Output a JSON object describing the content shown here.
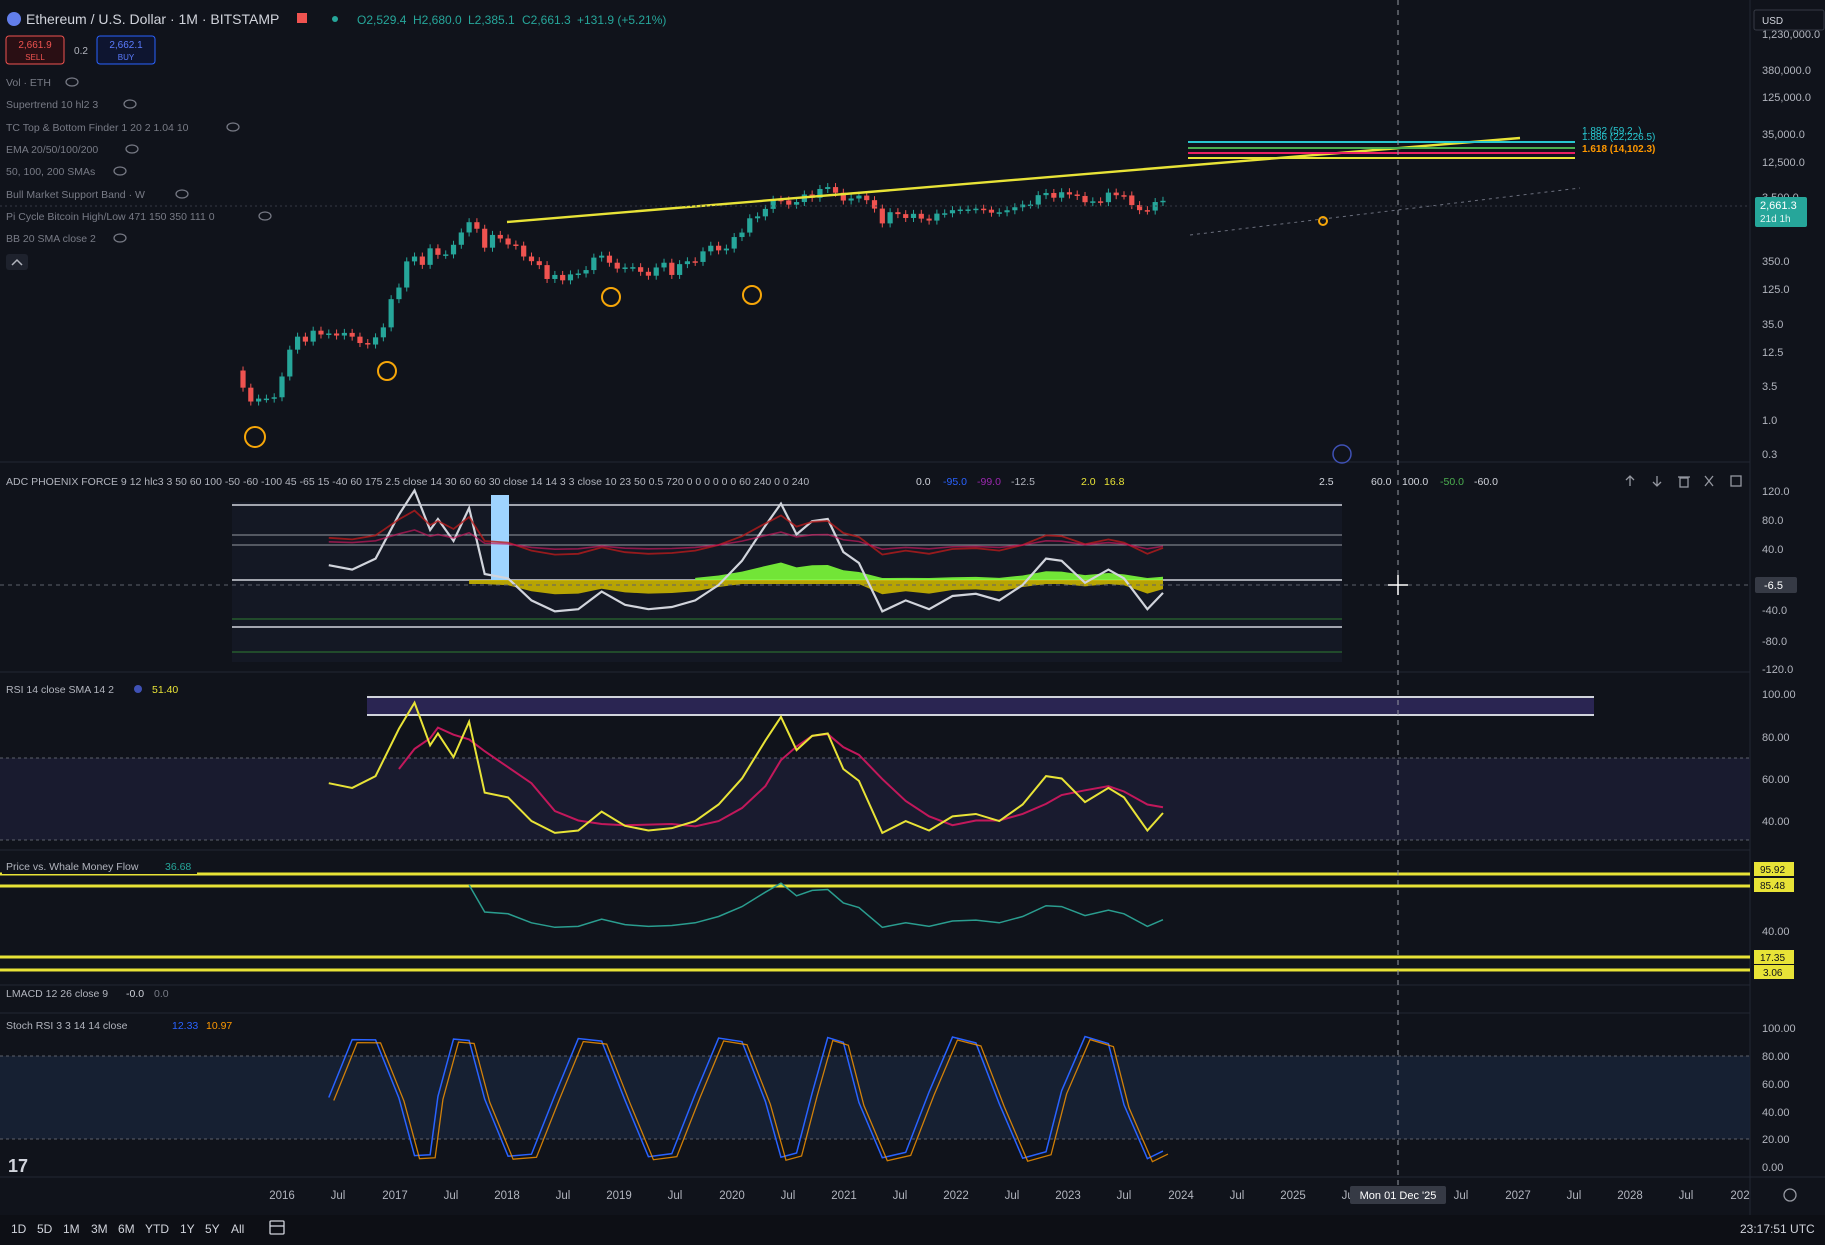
{
  "header": {
    "symbol": "Ethereum / U.S. Dollar · 1M · BITSTAMP",
    "ohlc": {
      "open": "O2,529.4",
      "high": "H2,680.0",
      "low": "L2,385.1",
      "close": "C2,661.3",
      "change": "+131.9 (+5.21%)"
    },
    "sell_price": "2,661.9",
    "sell_label": "SELL",
    "spread": "0.2",
    "buy_price": "2,662.1",
    "buy_label": "BUY",
    "currency": "USD"
  },
  "indicators": [
    "Vol · ETH",
    "Supertrend 10 hl2 3",
    "TC Top & Bottom Finder 1 20 2 1.04 10",
    "EMA 20/50/100/200",
    "50, 100, 200 SMAs",
    "Bull Market Support Band · W",
    "Pi Cycle Bitcoin High/Low 471 150 350 111 0",
    "BB 20 SMA close 2"
  ],
  "price_axis": {
    "ticks": [
      "1,230,000.0",
      "380,000.0",
      "125,000.0",
      "35,000.0",
      "12,500.0",
      "3,500.0",
      "350.0",
      "125.0",
      "35.0",
      "12.5",
      "3.5",
      "1.0",
      "0.3"
    ],
    "current_price": "2,661.3",
    "countdown": "21d 1h"
  },
  "fib_labels": [
    "1.882 (59,2..)",
    "1.886 (22,226.5)",
    "1.618 (14,102.3)"
  ],
  "phoenix": {
    "title": "ADC PHOENIX FORCE 9 12 hlc3 3 50 60 100 -50 -60 -100 45 -65 15 -40 60 175 2.5 close 14 30 60 60 30 close 14 14 3 3 close 10 23 50 0.5 720 0 0 0 0 0 0 60 240 0 0 240",
    "values": [
      "0.0",
      "-95.0",
      "-99.0",
      "-12.5",
      "2.0",
      "16.8",
      "2.5",
      "60.0",
      "100.0",
      "-50.0",
      "-60.0"
    ],
    "axis": [
      "120.0",
      "80.0",
      "40.0",
      "-6.5",
      "-40.0",
      "-80.0",
      "-120.0"
    ]
  },
  "rsi": {
    "title": "RSI 14 close SMA 14 2",
    "value": "51.40",
    "axis": [
      "100.00",
      "80.00",
      "60.00",
      "40.00"
    ]
  },
  "whale": {
    "title": "Price vs. Whale Money Flow",
    "value": "36.68",
    "axis": [
      "95.92",
      "85.48",
      "40.00",
      "17.35",
      "3.06"
    ]
  },
  "lmacd": {
    "title": "LMACD 12 26 close 9",
    "value1": "-0.0",
    "value2": "0.0"
  },
  "stoch": {
    "title": "Stoch RSI 3 3 14 14 close",
    "k": "12.33",
    "d": "10.97",
    "axis": [
      "100.00",
      "80.00",
      "60.00",
      "40.00",
      "20.00",
      "0.00"
    ]
  },
  "time_axis": {
    "labels": [
      "2016",
      "Jul",
      "2017",
      "Jul",
      "2018",
      "Jul",
      "2019",
      "Jul",
      "2020",
      "Jul",
      "2021",
      "Jul",
      "2022",
      "Jul",
      "2023",
      "Jul",
      "2024",
      "Jul",
      "2025",
      "Jul",
      "Jul",
      "2027",
      "Jul",
      "2028",
      "Jul",
      "202"
    ],
    "cursor_label": "Mon 01 Dec '25"
  },
  "bottom_bar": {
    "ranges": [
      "1D",
      "5D",
      "1M",
      "3M",
      "6M",
      "YTD",
      "1Y",
      "5Y",
      "All"
    ],
    "clock": "23:17:51 UTC"
  },
  "colors": {
    "background": "#10131b",
    "up": "#26a69a",
    "down": "#ef5350",
    "trendline": "#e8e337",
    "rsi_line": "#e8e337",
    "rsi_ma": "#c2185b",
    "phoenix_green": "#7cfc3a",
    "phoenix_gold": "#c9b400",
    "stoch_k": "#2962ff",
    "stoch_d": "#ff9800",
    "whale": "#2a9d8f",
    "current_price_tag": "#26a69a",
    "fib_cyan": "#28c7d0",
    "fib_green": "#4caf50",
    "fib_red": "#e91e63"
  },
  "chart_data": {
    "type": "candlestick",
    "title": "Ethereum / U.S. Dollar · 1M · BITSTAMP",
    "scale": "log",
    "y_range_display": [
      0.3,
      1230000
    ],
    "current_price": 2661.3,
    "months": [
      {
        "t": "2015-08",
        "o": 2.8,
        "c": 1.4
      },
      {
        "t": "2015-09",
        "o": 1.4,
        "c": 0.8
      },
      {
        "t": "2015-10",
        "o": 0.8,
        "c": 0.9
      },
      {
        "t": "2015-11",
        "o": 0.9,
        "c": 0.9
      },
      {
        "t": "2015-12",
        "o": 0.9,
        "c": 0.95
      },
      {
        "t": "2016-01",
        "o": 0.95,
        "c": 2.2
      },
      {
        "t": "2016-02",
        "o": 2.2,
        "c": 6.5
      },
      {
        "t": "2016-03",
        "o": 6.5,
        "c": 11.0
      },
      {
        "t": "2016-04",
        "o": 11.0,
        "c": 9.0
      },
      {
        "t": "2016-05",
        "o": 9.0,
        "c": 14.0
      },
      {
        "t": "2016-06",
        "o": 14.0,
        "c": 12.0
      },
      {
        "t": "2016-07",
        "o": 12.0,
        "c": 12.5
      },
      {
        "t": "2016-08",
        "o": 12.5,
        "c": 11.5
      },
      {
        "t": "2016-09",
        "o": 11.5,
        "c": 12.8
      },
      {
        "t": "2016-10",
        "o": 12.8,
        "c": 11.0
      },
      {
        "t": "2016-11",
        "o": 11.0,
        "c": 8.5
      },
      {
        "t": "2016-12",
        "o": 8.5,
        "c": 8.0
      },
      {
        "t": "2017-01",
        "o": 8.0,
        "c": 10.7
      },
      {
        "t": "2017-02",
        "o": 10.7,
        "c": 16.0
      },
      {
        "t": "2017-03",
        "o": 16.0,
        "c": 50.0
      },
      {
        "t": "2017-04",
        "o": 50.0,
        "c": 80.0
      },
      {
        "t": "2017-05",
        "o": 80.0,
        "c": 230.0
      },
      {
        "t": "2017-06",
        "o": 230.0,
        "c": 280.0
      },
      {
        "t": "2017-07",
        "o": 280.0,
        "c": 200.0
      },
      {
        "t": "2017-08",
        "o": 200.0,
        "c": 390.0
      },
      {
        "t": "2017-09",
        "o": 390.0,
        "c": 300.0
      },
      {
        "t": "2017-10",
        "o": 300.0,
        "c": 305.0
      },
      {
        "t": "2017-11",
        "o": 305.0,
        "c": 450.0
      },
      {
        "t": "2017-12",
        "o": 450.0,
        "c": 740.0
      },
      {
        "t": "2018-01",
        "o": 740.0,
        "c": 1120.0
      },
      {
        "t": "2018-02",
        "o": 1120.0,
        "c": 860.0
      },
      {
        "t": "2018-03",
        "o": 860.0,
        "c": 400.0
      },
      {
        "t": "2018-04",
        "o": 400.0,
        "c": 670.0
      },
      {
        "t": "2018-05",
        "o": 670.0,
        "c": 580.0
      },
      {
        "t": "2018-06",
        "o": 580.0,
        "c": 455.0
      },
      {
        "t": "2018-07",
        "o": 455.0,
        "c": 435.0
      },
      {
        "t": "2018-08",
        "o": 435.0,
        "c": 280.0
      },
      {
        "t": "2018-09",
        "o": 280.0,
        "c": 232.0
      },
      {
        "t": "2018-10",
        "o": 232.0,
        "c": 198.0
      },
      {
        "t": "2018-11",
        "o": 198.0,
        "c": 113.0
      },
      {
        "t": "2018-12",
        "o": 113.0,
        "c": 133.0
      },
      {
        "t": "2019-01",
        "o": 133.0,
        "c": 107.0
      },
      {
        "t": "2019-02",
        "o": 107.0,
        "c": 136.0
      },
      {
        "t": "2019-03",
        "o": 136.0,
        "c": 141.0
      },
      {
        "t": "2019-04",
        "o": 141.0,
        "c": 162.0
      },
      {
        "t": "2019-05",
        "o": 162.0,
        "c": 268.0
      },
      {
        "t": "2019-06",
        "o": 268.0,
        "c": 290.0
      },
      {
        "t": "2019-07",
        "o": 290.0,
        "c": 218.0
      },
      {
        "t": "2019-08",
        "o": 218.0,
        "c": 172.0
      },
      {
        "t": "2019-09",
        "o": 172.0,
        "c": 180.0
      },
      {
        "t": "2019-10",
        "o": 180.0,
        "c": 182.0
      },
      {
        "t": "2019-11",
        "o": 182.0,
        "c": 151.0
      },
      {
        "t": "2019-12",
        "o": 151.0,
        "c": 129.0
      },
      {
        "t": "2020-01",
        "o": 129.0,
        "c": 180.0
      },
      {
        "t": "2020-02",
        "o": 180.0,
        "c": 218.0
      },
      {
        "t": "2020-03",
        "o": 218.0,
        "c": 133.0
      },
      {
        "t": "2020-04",
        "o": 133.0,
        "c": 206.0
      },
      {
        "t": "2020-05",
        "o": 206.0,
        "c": 231.0
      },
      {
        "t": "2020-06",
        "o": 231.0,
        "c": 225.0
      },
      {
        "t": "2020-07",
        "o": 225.0,
        "c": 345.0
      },
      {
        "t": "2020-08",
        "o": 345.0,
        "c": 433.0
      },
      {
        "t": "2020-09",
        "o": 433.0,
        "c": 359.0
      },
      {
        "t": "2020-10",
        "o": 359.0,
        "c": 386.0
      },
      {
        "t": "2020-11",
        "o": 386.0,
        "c": 615.0
      },
      {
        "t": "2020-12",
        "o": 615.0,
        "c": 737.0
      },
      {
        "t": "2021-01",
        "o": 737.0,
        "c": 1312.0
      },
      {
        "t": "2021-02",
        "o": 1312.0,
        "c": 1418.0
      },
      {
        "t": "2021-03",
        "o": 1418.0,
        "c": 1918.0
      },
      {
        "t": "2021-04",
        "o": 1918.0,
        "c": 2773.0
      },
      {
        "t": "2021-05",
        "o": 2773.0,
        "c": 2707.0
      },
      {
        "t": "2021-06",
        "o": 2707.0,
        "c": 2275.0
      },
      {
        "t": "2021-07",
        "o": 2275.0,
        "c": 2530.0
      },
      {
        "t": "2021-08",
        "o": 2530.0,
        "c": 3433.0
      },
      {
        "t": "2021-09",
        "o": 3433.0,
        "c": 3001.0
      },
      {
        "t": "2021-10",
        "o": 3001.0,
        "c": 4288.0
      },
      {
        "t": "2021-11",
        "o": 4288.0,
        "c": 4631.0
      },
      {
        "t": "2021-12",
        "o": 4631.0,
        "c": 3683.0
      },
      {
        "t": "2022-01",
        "o": 3683.0,
        "c": 2688.0
      },
      {
        "t": "2022-02",
        "o": 2688.0,
        "c": 2919.0
      },
      {
        "t": "2022-03",
        "o": 2919.0,
        "c": 3282.0
      },
      {
        "t": "2022-04",
        "o": 3282.0,
        "c": 2728.0
      },
      {
        "t": "2022-05",
        "o": 2728.0,
        "c": 1942.0
      },
      {
        "t": "2022-06",
        "o": 1942.0,
        "c": 1067.0
      },
      {
        "t": "2022-07",
        "o": 1067.0,
        "c": 1678.0
      },
      {
        "t": "2022-08",
        "o": 1678.0,
        "c": 1553.0
      },
      {
        "t": "2022-09",
        "o": 1553.0,
        "c": 1328.0
      },
      {
        "t": "2022-10",
        "o": 1328.0,
        "c": 1572.0
      },
      {
        "t": "2022-11",
        "o": 1572.0,
        "c": 1295.0
      },
      {
        "t": "2022-12",
        "o": 1295.0,
        "c": 1196.0
      },
      {
        "t": "2023-01",
        "o": 1196.0,
        "c": 1585.0
      },
      {
        "t": "2023-02",
        "o": 1585.0,
        "c": 1605.0
      },
      {
        "t": "2023-03",
        "o": 1605.0,
        "c": 1822.0
      },
      {
        "t": "2023-04",
        "o": 1822.0,
        "c": 1869.0
      },
      {
        "t": "2023-05",
        "o": 1869.0,
        "c": 1874.0
      },
      {
        "t": "2023-06",
        "o": 1874.0,
        "c": 1934.0
      },
      {
        "t": "2023-07",
        "o": 1934.0,
        "c": 1856.0
      },
      {
        "t": "2023-08",
        "o": 1856.0,
        "c": 1646.0
      },
      {
        "t": "2023-09",
        "o": 1646.0,
        "c": 1671.0
      },
      {
        "t": "2023-10",
        "o": 1671.0,
        "c": 1815.0
      },
      {
        "t": "2023-11",
        "o": 1815.0,
        "c": 2050.0
      },
      {
        "t": "2023-12",
        "o": 2050.0,
        "c": 2282.0
      },
      {
        "t": "2024-01",
        "o": 2282.0,
        "c": 2283.0
      },
      {
        "t": "2024-02",
        "o": 2283.0,
        "c": 3340.0
      },
      {
        "t": "2024-03",
        "o": 3340.0,
        "c": 3648.0
      },
      {
        "t": "2024-04",
        "o": 3648.0,
        "c": 3013.0
      },
      {
        "t": "2024-05",
        "o": 3013.0,
        "c": 3760.0
      },
      {
        "t": "2024-06",
        "o": 3760.0,
        "c": 3432.0
      },
      {
        "t": "2024-07",
        "o": 3432.0,
        "c": 3232.0
      },
      {
        "t": "2024-08",
        "o": 3232.0,
        "c": 2513.0
      },
      {
        "t": "2024-09",
        "o": 2513.0,
        "c": 2602.0
      },
      {
        "t": "2024-10",
        "o": 2602.0,
        "c": 2517.0
      },
      {
        "t": "2024-11",
        "o": 2517.0,
        "c": 3703.0
      },
      {
        "t": "2024-12",
        "o": 3703.0,
        "c": 3332.0
      },
      {
        "t": "2025-01",
        "o": 3332.0,
        "c": 3300.0
      },
      {
        "t": "2025-02",
        "o": 3300.0,
        "c": 2237.0
      },
      {
        "t": "2025-03",
        "o": 2237.0,
        "c": 1822.0
      },
      {
        "t": "2025-04",
        "o": 1822.0,
        "c": 1793.0
      },
      {
        "t": "2025-05",
        "o": 1793.0,
        "c": 2529.4
      },
      {
        "t": "2025-06",
        "o": 2529.4,
        "c": 2661.3
      }
    ],
    "rsi": [
      {
        "t": "2016-07",
        "v": 64
      },
      {
        "t": "2016-10",
        "v": 62
      },
      {
        "t": "2017-01",
        "v": 67
      },
      {
        "t": "2017-04",
        "v": 87
      },
      {
        "t": "2017-06",
        "v": 98
      },
      {
        "t": "2017-08",
        "v": 80
      },
      {
        "t": "2017-09",
        "v": 85
      },
      {
        "t": "2017-11",
        "v": 75
      },
      {
        "t": "2018-01",
        "v": 90
      },
      {
        "t": "2018-03",
        "v": 60
      },
      {
        "t": "2018-06",
        "v": 58
      },
      {
        "t": "2018-09",
        "v": 48
      },
      {
        "t": "2018-12",
        "v": 43
      },
      {
        "t": "2019-03",
        "v": 44
      },
      {
        "t": "2019-06",
        "v": 52
      },
      {
        "t": "2019-09",
        "v": 46
      },
      {
        "t": "2019-12",
        "v": 44
      },
      {
        "t": "2020-03",
        "v": 45
      },
      {
        "t": "2020-06",
        "v": 48
      },
      {
        "t": "2020-09",
        "v": 55
      },
      {
        "t": "2020-12",
        "v": 66
      },
      {
        "t": "2021-03",
        "v": 82
      },
      {
        "t": "2021-05",
        "v": 92
      },
      {
        "t": "2021-07",
        "v": 78
      },
      {
        "t": "2021-09",
        "v": 84
      },
      {
        "t": "2021-11",
        "v": 85
      },
      {
        "t": "2022-01",
        "v": 70
      },
      {
        "t": "2022-03",
        "v": 65
      },
      {
        "t": "2022-06",
        "v": 43
      },
      {
        "t": "2022-09",
        "v": 48
      },
      {
        "t": "2022-12",
        "v": 44
      },
      {
        "t": "2023-03",
        "v": 50
      },
      {
        "t": "2023-06",
        "v": 51
      },
      {
        "t": "2023-09",
        "v": 48
      },
      {
        "t": "2023-12",
        "v": 55
      },
      {
        "t": "2024-03",
        "v": 67
      },
      {
        "t": "2024-05",
        "v": 66
      },
      {
        "t": "2024-08",
        "v": 56
      },
      {
        "t": "2024-11",
        "v": 62
      },
      {
        "t": "2025-01",
        "v": 58
      },
      {
        "t": "2025-04",
        "v": 44
      },
      {
        "t": "2025-06",
        "v": 51.4
      }
    ]
  }
}
